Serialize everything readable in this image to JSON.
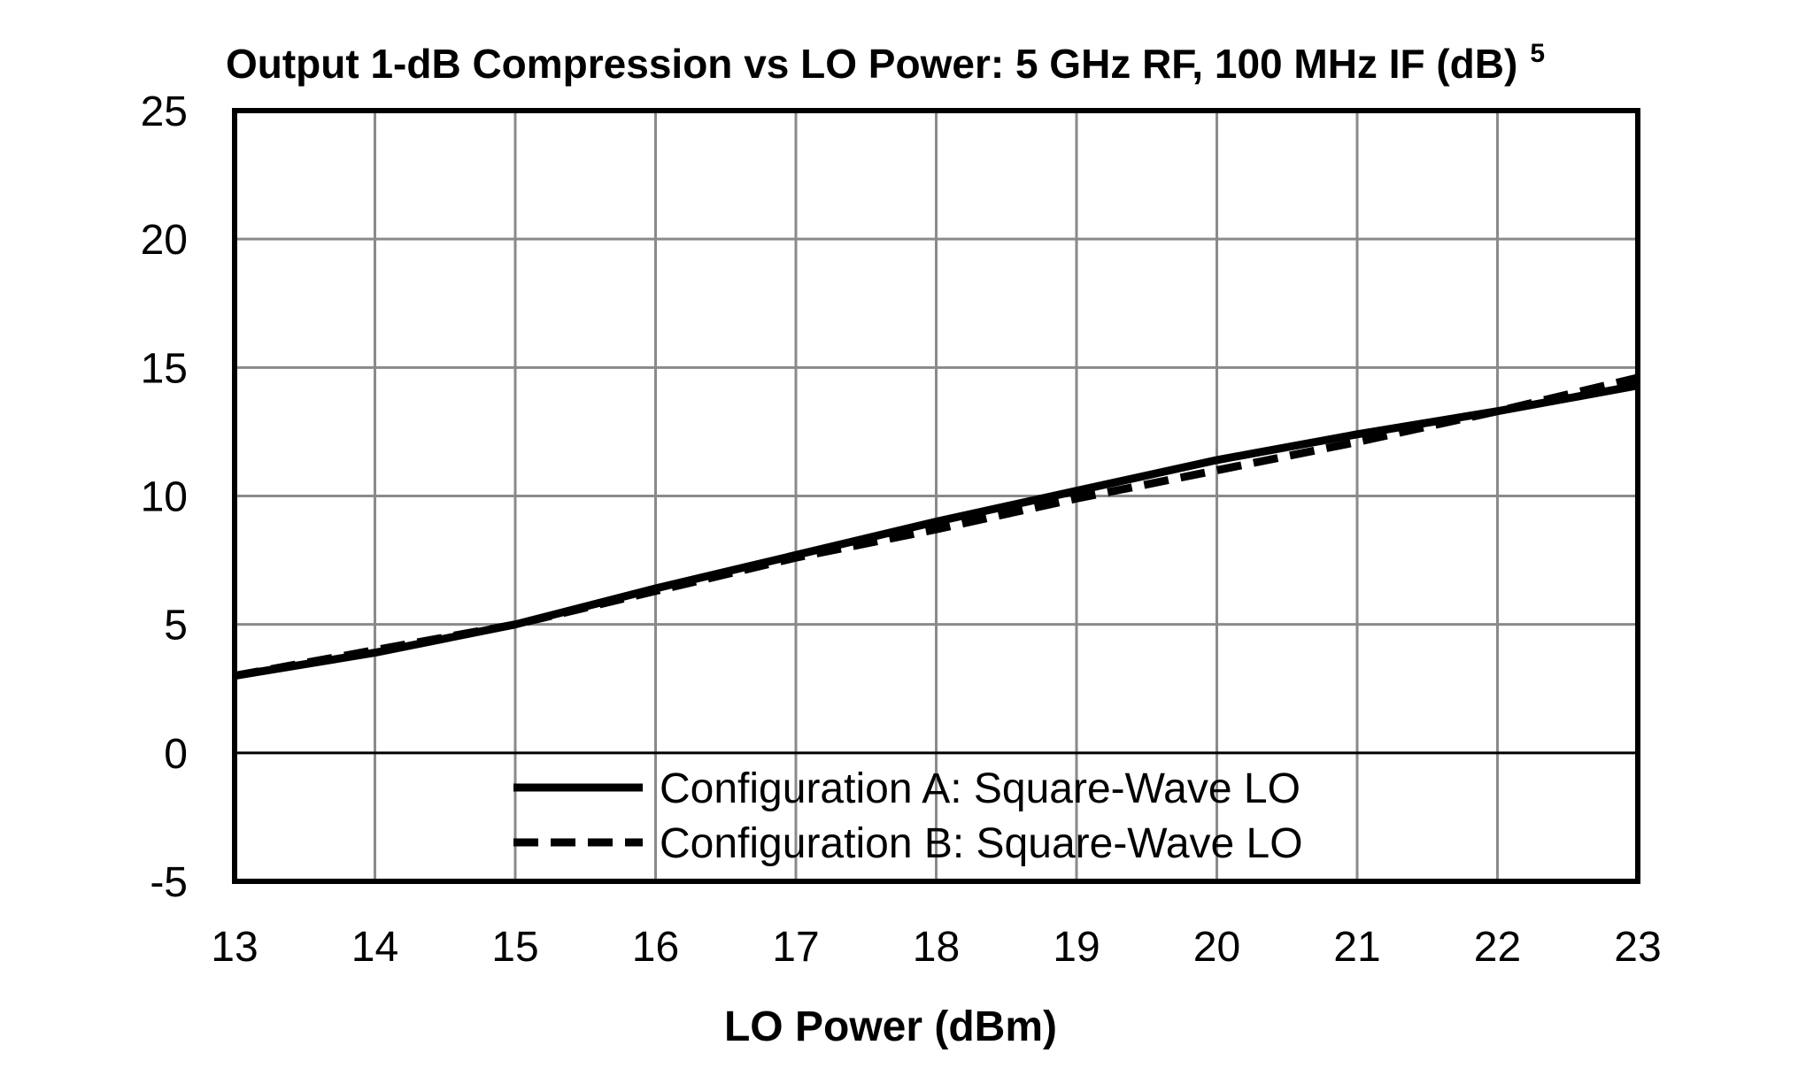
{
  "chart_data": {
    "type": "line",
    "title": "Output 1-dB Compression vs LO Power: 5 GHz RF, 100 MHz IF (dB)",
    "title_superscript": "5",
    "xlabel": "LO Power (dBm)",
    "ylabel": "",
    "xlim": [
      13,
      23
    ],
    "ylim": [
      -5,
      25
    ],
    "x_ticks": [
      13,
      14,
      15,
      16,
      17,
      18,
      19,
      20,
      21,
      22,
      23
    ],
    "y_ticks": [
      25,
      20,
      15,
      10,
      5,
      0,
      -5
    ],
    "grid": true,
    "legend_position": "bottom-center",
    "x": [
      13,
      14,
      15,
      16,
      17,
      18,
      19,
      20,
      21,
      22,
      23
    ],
    "series": [
      {
        "name": "Configuration A: Square-Wave LO",
        "style": "solid",
        "color": "#000000",
        "values": [
          3.0,
          3.9,
          5.0,
          6.4,
          7.7,
          9.0,
          10.2,
          11.4,
          12.4,
          13.3,
          14.3
        ]
      },
      {
        "name": "Configuration B: Square-Wave LO",
        "style": "dashed",
        "color": "#000000",
        "values": [
          3.0,
          4.0,
          5.0,
          6.3,
          7.6,
          8.7,
          9.9,
          11.0,
          12.1,
          13.3,
          14.6
        ]
      }
    ]
  }
}
